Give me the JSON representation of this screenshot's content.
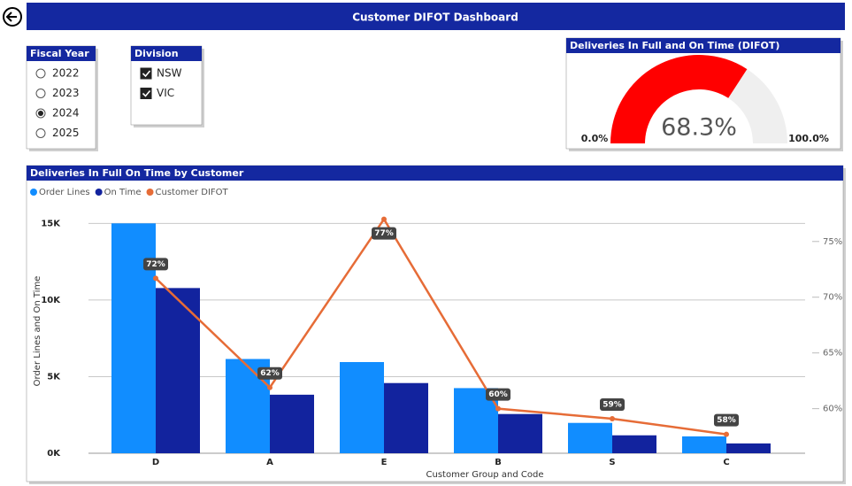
{
  "header": {
    "title": "Customer DIFOT Dashboard"
  },
  "slicers": [
    {
      "title": "Fiscal Year",
      "kind": "radio",
      "options": [
        "2022",
        "2023",
        "2024",
        "2025"
      ],
      "selected": "2024"
    },
    {
      "title": "Division",
      "kind": "checkbox",
      "options": [
        "NSW",
        "VIC"
      ],
      "checked": [
        "NSW",
        "VIC"
      ]
    }
  ],
  "chart_data": [
    {
      "type": "gauge",
      "title": "Deliveries In Full and On Time (DIFOT)",
      "value": 68.3,
      "value_label": "68.3%",
      "min": {
        "value": 0,
        "label": "0.0%"
      },
      "max": {
        "value": 100,
        "label": "100.0%"
      },
      "color": "#ff0000",
      "track_color": "#efefef"
    },
    {
      "type": "combo",
      "title": "Deliveries In Full On Time by Customer",
      "x_label": "Customer Group and Code",
      "y_label": "Order Lines and On Time",
      "categories": [
        "D",
        "A",
        "E",
        "B",
        "S",
        "C"
      ],
      "series": [
        {
          "name": "Order Lines",
          "color": "#118dff",
          "kind": "bar",
          "values": [
            15000,
            6150,
            5950,
            4250,
            1980,
            1100
          ]
        },
        {
          "name": "On Time",
          "color": "#12239e",
          "kind": "bar",
          "values": [
            10780,
            3820,
            4580,
            2560,
            1170,
            640
          ]
        },
        {
          "name": "Customer DIFOT",
          "color": "#e66c37",
          "kind": "line",
          "axis": "y2",
          "values": [
            71.7,
            61.9,
            77.0,
            60.0,
            59.1,
            57.7
          ],
          "value_labels": [
            "72%",
            "62%",
            "77%",
            "60%",
            "59%",
            "58%"
          ]
        }
      ],
      "ylim": [
        0,
        16000
      ],
      "yticks": [
        {
          "value": 0,
          "label": "0K"
        },
        {
          "value": 5000,
          "label": "5K"
        },
        {
          "value": 10000,
          "label": "10K"
        },
        {
          "value": 15000,
          "label": "15K"
        }
      ],
      "y2lim": [
        56,
        78
      ],
      "y2ticks": [
        {
          "value": 60,
          "label": "60%"
        },
        {
          "value": 65,
          "label": "65%"
        },
        {
          "value": 70,
          "label": "70%"
        },
        {
          "value": 75,
          "label": "75%"
        }
      ],
      "grid": true
    }
  ]
}
